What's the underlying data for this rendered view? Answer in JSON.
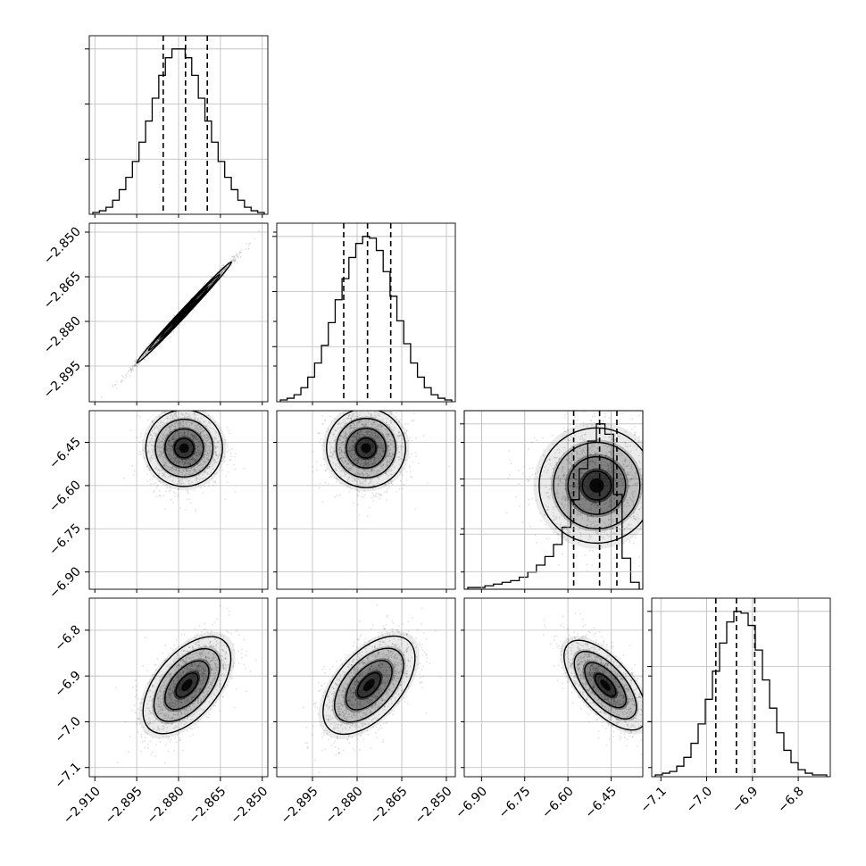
{
  "chart_data": {
    "type": "corner",
    "parameters": [
      {
        "ticks": [
          -2.91,
          -2.895,
          -2.88,
          -2.865,
          -2.85
        ],
        "tick_labels": [
          "−2.910",
          "−2.895",
          "−2.880",
          "−2.865",
          "−2.850"
        ],
        "x_range": [
          -2.912,
          -2.848
        ],
        "quantiles": [
          -2.8855,
          -2.8775,
          -2.8697
        ],
        "hist_counts": [
          1,
          2,
          4,
          8,
          14,
          21,
          30,
          41,
          53,
          66,
          79,
          89,
          94,
          94,
          89,
          79,
          66,
          53,
          41,
          30,
          21,
          14,
          8,
          4,
          2,
          1
        ]
      },
      {
        "ticks": [
          -2.895,
          -2.88,
          -2.865,
          -2.85
        ],
        "tick_labels": [
          "−2.895",
          "−2.880",
          "−2.865",
          "−2.850"
        ],
        "x_range": [
          -2.907,
          -2.847
        ],
        "quantiles": [
          -2.8845,
          -2.8765,
          -2.8687
        ],
        "hist_counts": [
          1,
          2,
          4,
          8,
          14,
          22,
          32,
          45,
          58,
          70,
          82,
          90,
          94,
          93,
          86,
          74,
          60,
          46,
          33,
          22,
          14,
          8,
          4,
          2,
          1
        ]
      },
      {
        "ticks": [
          -6.9,
          -6.75,
          -6.6,
          -6.45
        ],
        "tick_labels": [
          "−6.90",
          "−6.75",
          "−6.60",
          "−6.45"
        ],
        "x_range": [
          -6.96,
          -6.34
        ],
        "quantiles": [
          -6.58,
          -6.49,
          -6.43
        ],
        "hist_counts": [
          1,
          1,
          2,
          3,
          4,
          5,
          7,
          10,
          14,
          19,
          26,
          36,
          52,
          70,
          86,
          96,
          90,
          55,
          18,
          4
        ]
      },
      {
        "ticks": [
          -7.1,
          -7.0,
          -6.9,
          -6.8
        ],
        "tick_labels": [
          "−7.1",
          "−7.0",
          "−6.9",
          "−6.8"
        ],
        "x_range": [
          -7.12,
          -6.73
        ],
        "quantiles": [
          -6.98,
          -6.935,
          -6.895
        ],
        "hist_counts": [
          1,
          2,
          3,
          6,
          11,
          19,
          30,
          44,
          60,
          76,
          88,
          94,
          93,
          86,
          72,
          55,
          39,
          25,
          15,
          8,
          4,
          2,
          1,
          1
        ]
      }
    ],
    "grid": true,
    "contour_panels": [
      {
        "row": 1,
        "col": 0,
        "cx": -2.878,
        "cy": -2.877,
        "sx": 0.0085,
        "sy": 0.0085,
        "rho": 0.995
      },
      {
        "row": 2,
        "col": 0,
        "cx": -2.878,
        "cy": -6.47,
        "sx": 0.0065,
        "sy": 0.07,
        "rho": 0.0
      },
      {
        "row": 2,
        "col": 1,
        "cx": -2.877,
        "cy": -6.47,
        "sx": 0.0065,
        "sy": 0.07,
        "rho": 0.0
      },
      {
        "row": 2,
        "col": 2,
        "cx": -6.5,
        "cy": -6.6,
        "sx": 0.1,
        "sy": 0.1,
        "rho": 0.0
      },
      {
        "row": 3,
        "col": 0,
        "cx": -2.877,
        "cy": -6.92,
        "sx": 0.0075,
        "sy": 0.055,
        "rho": 0.55
      },
      {
        "row": 3,
        "col": 1,
        "cx": -2.876,
        "cy": -6.92,
        "sx": 0.0075,
        "sy": 0.055,
        "rho": 0.55
      },
      {
        "row": 3,
        "col": 2,
        "cx": -6.47,
        "cy": -6.92,
        "sx": 0.07,
        "sy": 0.05,
        "rho": -0.65
      }
    ]
  }
}
